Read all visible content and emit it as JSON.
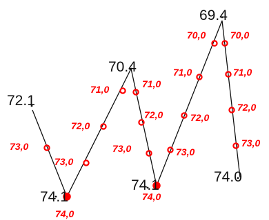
{
  "colors": {
    "line": "#111111",
    "contour": "#ff0000",
    "background": "#ffffff"
  },
  "vertices": [
    {
      "id": "v1",
      "label": "72.1"
    },
    {
      "id": "v2",
      "label": "74.1"
    },
    {
      "id": "v3",
      "label": "70.4"
    },
    {
      "id": "v4",
      "label": "74.1"
    },
    {
      "id": "v5",
      "label": "69.4"
    },
    {
      "id": "v6",
      "label": "74.0"
    }
  ],
  "contours": [
    {
      "id": "c1",
      "label": "73,0"
    },
    {
      "id": "c2",
      "label": "74,0"
    },
    {
      "id": "c3",
      "label": "73,0"
    },
    {
      "id": "c4",
      "label": "72,0"
    },
    {
      "id": "c5",
      "label": "71,0"
    },
    {
      "id": "c6",
      "label": "71,0"
    },
    {
      "id": "c7",
      "label": "72,0"
    },
    {
      "id": "c8",
      "label": "73,0"
    },
    {
      "id": "c9",
      "label": "74,0"
    },
    {
      "id": "c10",
      "label": "73,0"
    },
    {
      "id": "c11",
      "label": "72,0"
    },
    {
      "id": "c12",
      "label": "71,0"
    },
    {
      "id": "c13",
      "label": "70,0"
    },
    {
      "id": "c14",
      "label": "70,0"
    },
    {
      "id": "c15",
      "label": "71,0"
    },
    {
      "id": "c16",
      "label": "72,0"
    },
    {
      "id": "c17",
      "label": "73,0"
    }
  ]
}
